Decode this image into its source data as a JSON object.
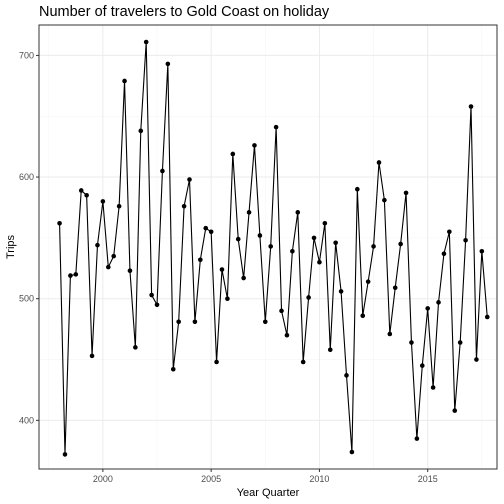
{
  "chart_data": {
    "type": "line",
    "title": "Number of travelers to Gold Coast on holiday",
    "xlabel": "Year Quarter",
    "ylabel": "Trips",
    "xlim": [
      1997.05,
      2018.2
    ],
    "ylim": [
      360,
      725
    ],
    "x_ticks": [
      2000,
      2005,
      2010,
      2015
    ],
    "x_tick_labels": [
      "2000",
      "2005",
      "2010",
      "2015"
    ],
    "y_ticks": [
      400,
      500,
      600,
      700
    ],
    "y_tick_labels": [
      "400",
      "500",
      "600",
      "700"
    ],
    "grid": true,
    "legend": "none",
    "series": [
      {
        "x": [
          "1998 Q1",
          "1998 Q2",
          "1998 Q3",
          "1998 Q4",
          "1999 Q1",
          "1999 Q2",
          "1999 Q3",
          "1999 Q4",
          "2000 Q1",
          "2000 Q2",
          "2000 Q3",
          "2000 Q4",
          "2001 Q1",
          "2001 Q2",
          "2001 Q3",
          "2001 Q4",
          "2002 Q1",
          "2002 Q2",
          "2002 Q3",
          "2002 Q4",
          "2003 Q1",
          "2003 Q2",
          "2003 Q3",
          "2003 Q4",
          "2004 Q1",
          "2004 Q2",
          "2004 Q3",
          "2004 Q4",
          "2005 Q1",
          "2005 Q2",
          "2005 Q3",
          "2005 Q4",
          "2006 Q1",
          "2006 Q2",
          "2006 Q3",
          "2006 Q4",
          "2007 Q1",
          "2007 Q2",
          "2007 Q3",
          "2007 Q4",
          "2008 Q1",
          "2008 Q2",
          "2008 Q3",
          "2008 Q4",
          "2009 Q1",
          "2009 Q2",
          "2009 Q3",
          "2009 Q4",
          "2010 Q1",
          "2010 Q2",
          "2010 Q3",
          "2010 Q4",
          "2011 Q1",
          "2011 Q2",
          "2011 Q3",
          "2011 Q4",
          "2012 Q1",
          "2012 Q2",
          "2012 Q3",
          "2012 Q4",
          "2013 Q1",
          "2013 Q2",
          "2013 Q3",
          "2013 Q4",
          "2014 Q1",
          "2014 Q2",
          "2014 Q3",
          "2014 Q4",
          "2015 Q1",
          "2015 Q2",
          "2015 Q3",
          "2015 Q4",
          "2016 Q1",
          "2016 Q2",
          "2016 Q3",
          "2016 Q4",
          "2017 Q1",
          "2017 Q2",
          "2017 Q3",
          "2017 Q4"
        ],
        "values": [
          562,
          372,
          519,
          520,
          589,
          585,
          453,
          544,
          580,
          526,
          535,
          576,
          679,
          523,
          460,
          638,
          711,
          503,
          495,
          605,
          693,
          442,
          481,
          576,
          598,
          481,
          532,
          558,
          555,
          448,
          524,
          500,
          619,
          549,
          517,
          571,
          626,
          552,
          481,
          543,
          641,
          490,
          470,
          539,
          571,
          448,
          501,
          550,
          530,
          562,
          458,
          546,
          506,
          437,
          374,
          590,
          486,
          514,
          543,
          612,
          581,
          471,
          509,
          545,
          587,
          464,
          385,
          445,
          492,
          427,
          497,
          537,
          555,
          408,
          464,
          548,
          658,
          450,
          539,
          485
        ],
        "color": "#000000"
      }
    ]
  }
}
